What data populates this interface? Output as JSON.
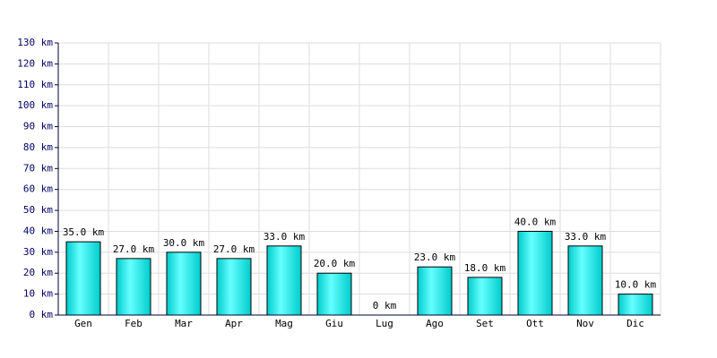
{
  "chart_data": {
    "type": "bar",
    "categories": [
      "Gen",
      "Feb",
      "Mar",
      "Apr",
      "Mag",
      "Giu",
      "Lug",
      "Ago",
      "Set",
      "Ott",
      "Nov",
      "Dic"
    ],
    "values": [
      35,
      27,
      30,
      27,
      33,
      20,
      0,
      23,
      18,
      40,
      33,
      10
    ],
    "value_labels": [
      "35.0 km",
      "27.0 km",
      "30.0 km",
      "27.0 km",
      "33.0 km",
      "20.0 km",
      "0 km",
      "23.0 km",
      "18.0 km",
      "40.0 km",
      "33.0 km",
      "10.0 km"
    ],
    "color": "#00cccc",
    "ylim": [
      0,
      130
    ],
    "yticks": [
      {
        "value": 0,
        "label": "0 km"
      },
      {
        "value": 10,
        "label": "10 km"
      },
      {
        "value": 20,
        "label": "20 km"
      },
      {
        "value": 30,
        "label": "30 km"
      },
      {
        "value": 40,
        "label": "40 km"
      },
      {
        "value": 50,
        "label": "50 km"
      },
      {
        "value": 60,
        "label": "60 km"
      },
      {
        "value": 70,
        "label": "70 km"
      },
      {
        "value": 80,
        "label": "80 km"
      },
      {
        "value": 90,
        "label": "90 km"
      },
      {
        "value": 100,
        "label": "100 km"
      },
      {
        "value": 110,
        "label": "110 km"
      },
      {
        "value": 120,
        "label": "120 km"
      },
      {
        "value": 130,
        "label": "130 km"
      }
    ],
    "grid": true
  }
}
